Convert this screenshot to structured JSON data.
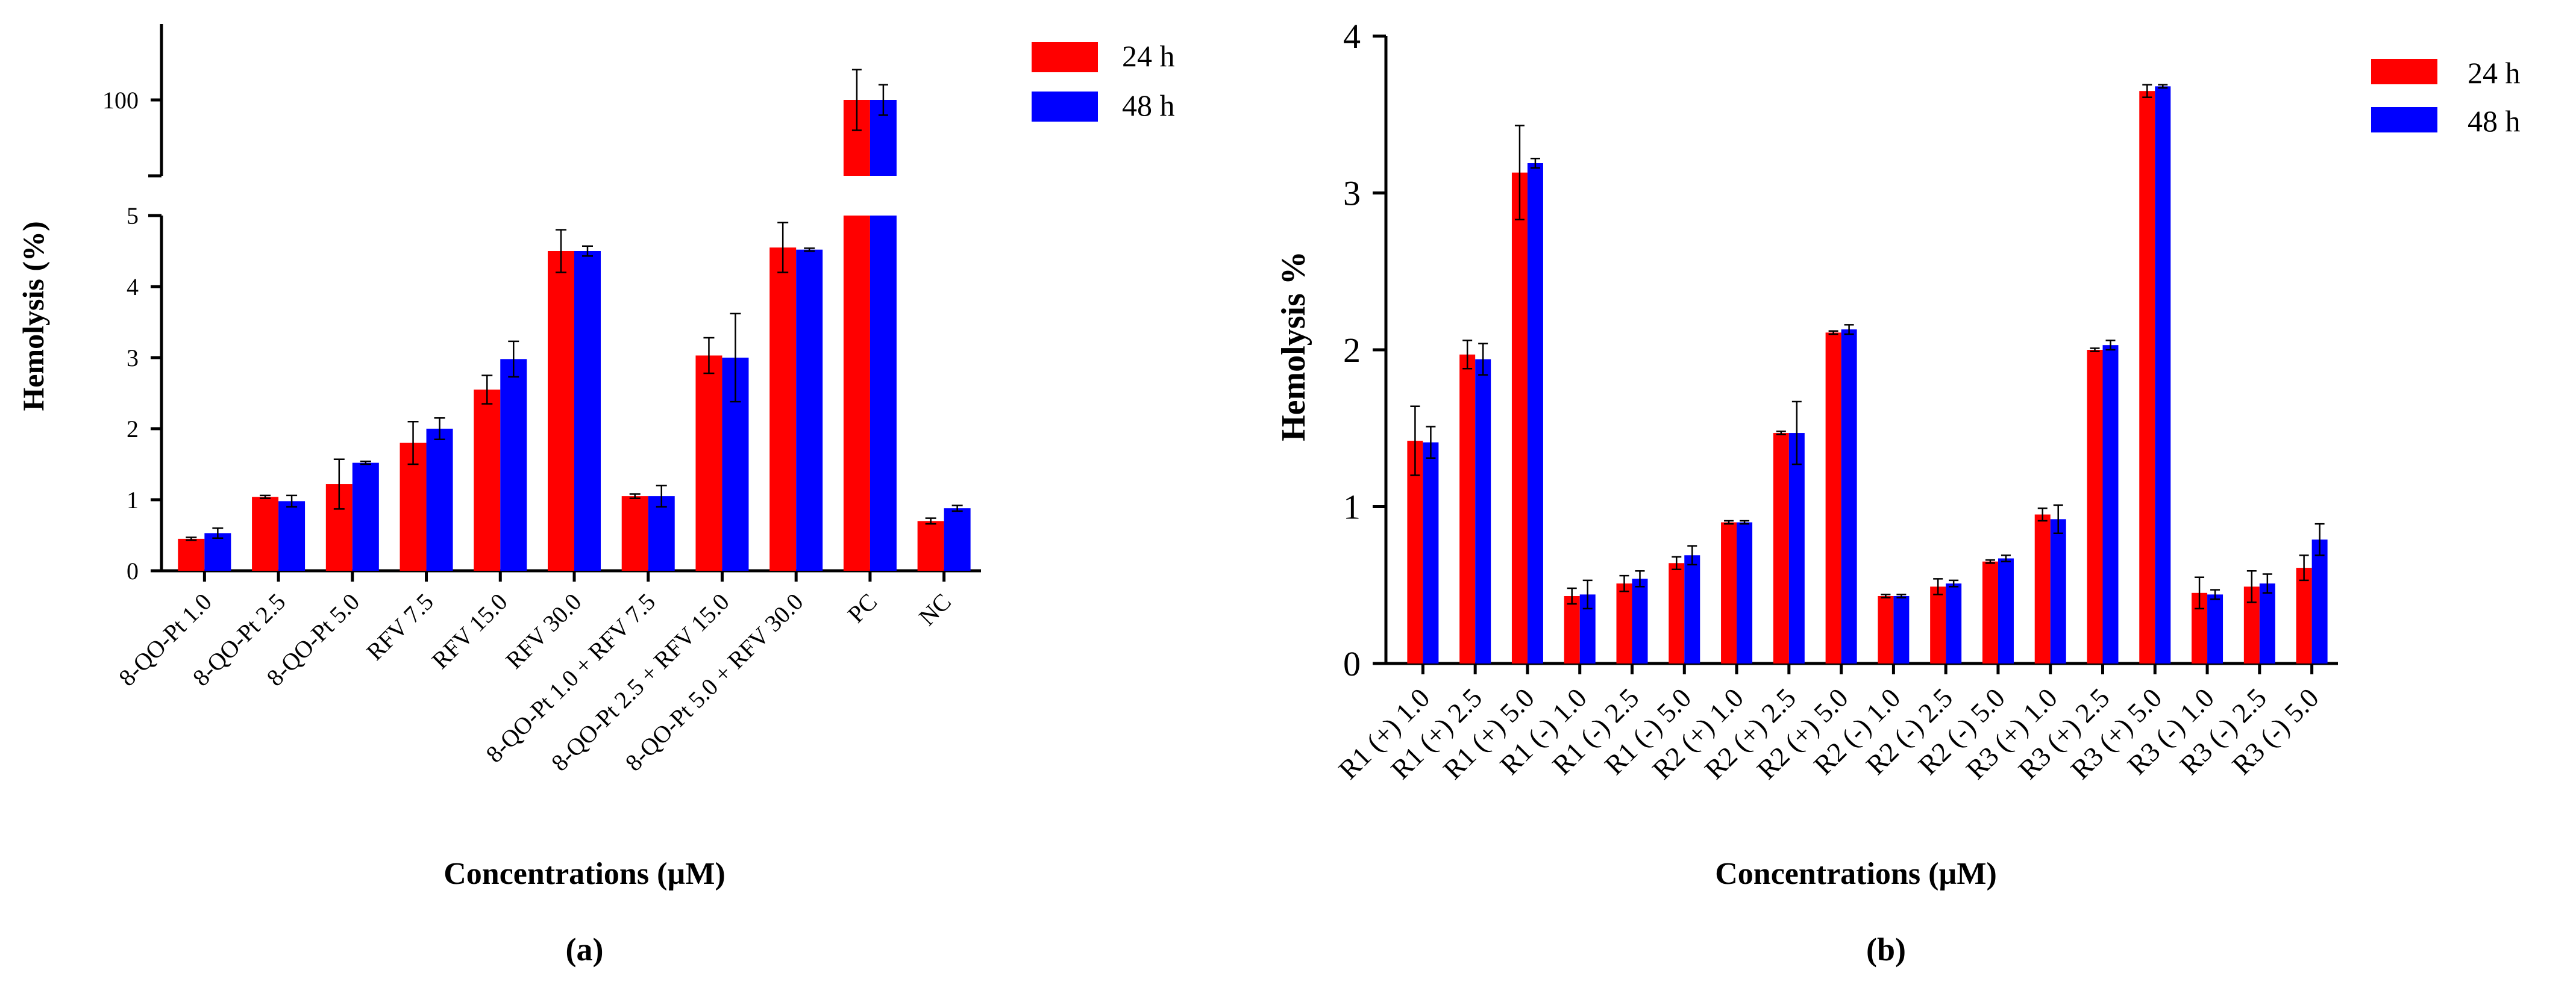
{
  "chart_data": [
    {
      "id": "a",
      "type": "bar",
      "panel_label": "(a)",
      "xlabel": "Concentrations (µM)",
      "ylabel": "Hemolysis (%)",
      "ylim": [
        0,
        5
      ],
      "ylim_upper_segment": [
        99,
        101
      ],
      "yticks": [
        "0",
        "1",
        "2",
        "3",
        "4",
        "5"
      ],
      "yticks_upper": [
        "100"
      ],
      "axis_break": true,
      "legend_position": "top-right",
      "categories": [
        "8-QO-Pt 1.0",
        "8-QO-Pt 2.5",
        "8-QO-Pt 5.0",
        "RFV 7.5",
        "RFV 15.0",
        "RFV 30.0",
        "8-QO-Pt 1.0 + RFV 7.5",
        "8-QO-Pt 2.5 + RFV 15.0",
        "8-QO-Pt 5.0 + RFV 30.0",
        "PC",
        "NC"
      ],
      "series": [
        {
          "name": "24 h",
          "color": "#ff0000",
          "values": [
            0.45,
            1.04,
            1.22,
            1.8,
            2.55,
            4.5,
            1.05,
            3.03,
            4.55,
            100,
            0.7
          ],
          "errors": [
            0.02,
            0.02,
            0.35,
            0.3,
            0.2,
            0.3,
            0.03,
            0.25,
            0.35,
            0.4,
            0.04
          ]
        },
        {
          "name": "48 h",
          "color": "#0000ff",
          "values": [
            0.53,
            0.98,
            1.52,
            2.0,
            2.98,
            4.5,
            1.05,
            3.0,
            4.52,
            100,
            0.88
          ],
          "errors": [
            0.07,
            0.08,
            0.02,
            0.15,
            0.25,
            0.07,
            0.15,
            0.62,
            0.02,
            0.2,
            0.04
          ]
        }
      ]
    },
    {
      "id": "b",
      "type": "bar",
      "panel_label": "(b)",
      "xlabel": "Concentrations (µM)",
      "ylabel": "Hemolysis %",
      "ylim": [
        0,
        4
      ],
      "yticks": [
        "0",
        "1",
        "2",
        "3",
        "4"
      ],
      "legend_position": "top-right",
      "categories": [
        "R1 (+) 1.0",
        "R1 (+) 2.5",
        "R1 (+) 5.0",
        "R1 (-) 1.0",
        "R1 (-) 2.5",
        "R1 (-) 5.0",
        "R2 (+) 1.0",
        "R2 (+) 2.5",
        "R2 (+) 5.0",
        "R2 (-) 1.0",
        "R2 (-) 2.5",
        "R2 (-) 5.0",
        "R3 (+) 1.0",
        "R3 (+) 2.5",
        "R3 (+) 5.0",
        "R3 (-) 1.0",
        "R3 (-) 2.5",
        "R3 (-) 5.0"
      ],
      "series": [
        {
          "name": "24 h",
          "color": "#ff0000",
          "values": [
            1.42,
            1.97,
            3.13,
            0.43,
            0.51,
            0.64,
            0.9,
            1.47,
            2.11,
            0.43,
            0.49,
            0.65,
            0.95,
            2.0,
            3.65,
            0.45,
            0.49,
            0.61
          ],
          "errors": [
            0.22,
            0.09,
            0.3,
            0.05,
            0.05,
            0.04,
            0.01,
            0.01,
            0.01,
            0.01,
            0.05,
            0.01,
            0.04,
            0.01,
            0.04,
            0.1,
            0.1,
            0.08
          ]
        },
        {
          "name": "48 h",
          "color": "#0000ff",
          "values": [
            1.41,
            1.94,
            3.19,
            0.44,
            0.54,
            0.69,
            0.9,
            1.47,
            2.13,
            0.43,
            0.51,
            0.67,
            0.92,
            2.03,
            3.68,
            0.44,
            0.51,
            0.79
          ],
          "errors": [
            0.1,
            0.1,
            0.03,
            0.09,
            0.05,
            0.06,
            0.01,
            0.2,
            0.03,
            0.01,
            0.02,
            0.02,
            0.09,
            0.03,
            0.01,
            0.03,
            0.06,
            0.1
          ]
        }
      ]
    }
  ]
}
